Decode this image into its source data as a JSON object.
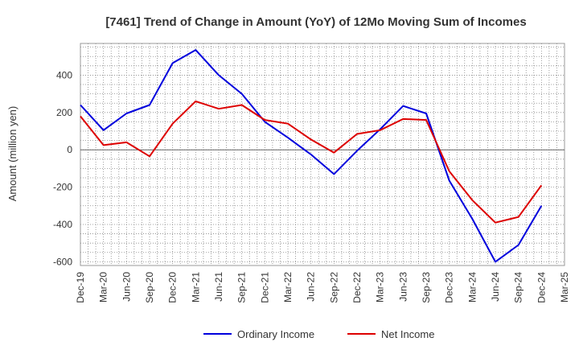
{
  "chart_data": {
    "type": "line",
    "title": "[7461]  Trend of Change in Amount (YoY) of 12Mo Moving Sum of Incomes",
    "xlabel": "",
    "ylabel": "Amount (million yen)",
    "ylim": [
      -620,
      570
    ],
    "yticks": [
      400,
      200,
      0,
      -200,
      -400,
      -600
    ],
    "ytick_labels": [
      "400",
      "200",
      "0",
      "-200",
      "-400",
      "-600"
    ],
    "categories": [
      "Dec-19",
      "Mar-20",
      "Jun-20",
      "Sep-20",
      "Dec-20",
      "Mar-21",
      "Jun-21",
      "Sep-21",
      "Dec-21",
      "Mar-22",
      "Jun-22",
      "Sep-22",
      "Dec-22",
      "Mar-23",
      "Jun-23",
      "Sep-23",
      "Dec-23",
      "Mar-24",
      "Jun-24",
      "Sep-24",
      "Dec-24",
      "Mar-25"
    ],
    "grid": true,
    "legend_position": "bottom",
    "series": [
      {
        "name": "Ordinary Income",
        "color": "#0000dd",
        "values": [
          240,
          105,
          195,
          240,
          465,
          535,
          400,
          300,
          150,
          65,
          -25,
          -130,
          -5,
          110,
          235,
          195,
          -165,
          -370,
          -600,
          -510,
          -300,
          null
        ]
      },
      {
        "name": "Net Income",
        "color": "#dd0000",
        "values": [
          180,
          25,
          40,
          -35,
          140,
          260,
          220,
          240,
          160,
          140,
          55,
          -15,
          85,
          105,
          165,
          160,
          -115,
          -270,
          -390,
          -360,
          -190,
          null
        ]
      }
    ]
  }
}
